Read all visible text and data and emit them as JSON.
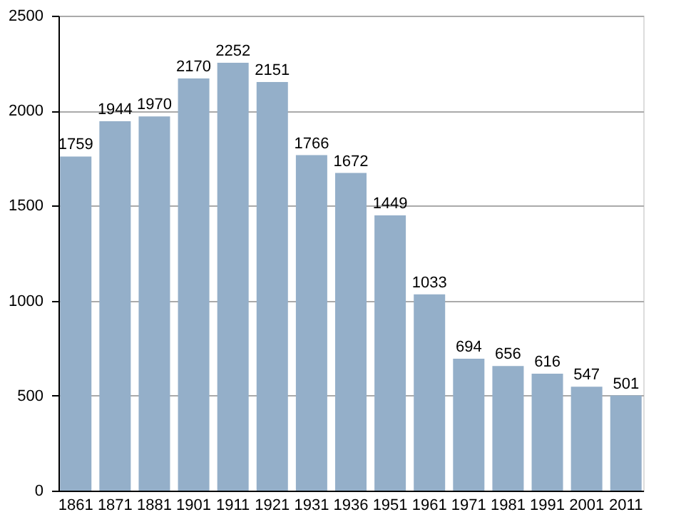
{
  "chart_data": {
    "type": "bar",
    "categories": [
      "1861",
      "1871",
      "1881",
      "1901",
      "1911",
      "1921",
      "1931",
      "1936",
      "1951",
      "1961",
      "1971",
      "1981",
      "1991",
      "2001",
      "2011"
    ],
    "values": [
      1759,
      1944,
      1970,
      2170,
      2252,
      2151,
      1766,
      1672,
      1449,
      1033,
      694,
      656,
      616,
      547,
      501
    ],
    "color": "#94afc9",
    "ylim": [
      0,
      2500
    ],
    "yticks": [
      0,
      500,
      1000,
      1500,
      2000,
      2500
    ],
    "grid": "y",
    "data_labels": true
  }
}
